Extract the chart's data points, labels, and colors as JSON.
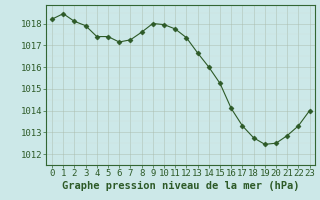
{
  "x": [
    0,
    1,
    2,
    3,
    4,
    5,
    6,
    7,
    8,
    9,
    10,
    11,
    12,
    13,
    14,
    15,
    16,
    17,
    18,
    19,
    20,
    21,
    22,
    23
  ],
  "y": [
    1018.2,
    1018.45,
    1018.1,
    1017.9,
    1017.4,
    1017.4,
    1017.15,
    1017.25,
    1017.6,
    1018.0,
    1017.95,
    1017.75,
    1017.35,
    1016.65,
    1016.0,
    1015.25,
    1014.1,
    1013.3,
    1012.75,
    1012.45,
    1012.5,
    1012.85,
    1013.3,
    1014.0
  ],
  "line_color": "#2d5a27",
  "marker": "D",
  "marker_size": 2.5,
  "bg_color": "#cce8e8",
  "grid_color_major": "#aabbaa",
  "grid_color_minor": "#ccddcc",
  "xlabel": "Graphe pression niveau de la mer (hPa)",
  "xlabel_fontsize": 7.5,
  "ylabel_ticks": [
    1012,
    1013,
    1014,
    1015,
    1016,
    1017,
    1018
  ],
  "ylim": [
    1011.5,
    1018.85
  ],
  "xlim": [
    -0.5,
    23.5
  ],
  "tick_fontsize": 6.5,
  "line_color_hex": "#2d5a27",
  "border_color": "#336633"
}
